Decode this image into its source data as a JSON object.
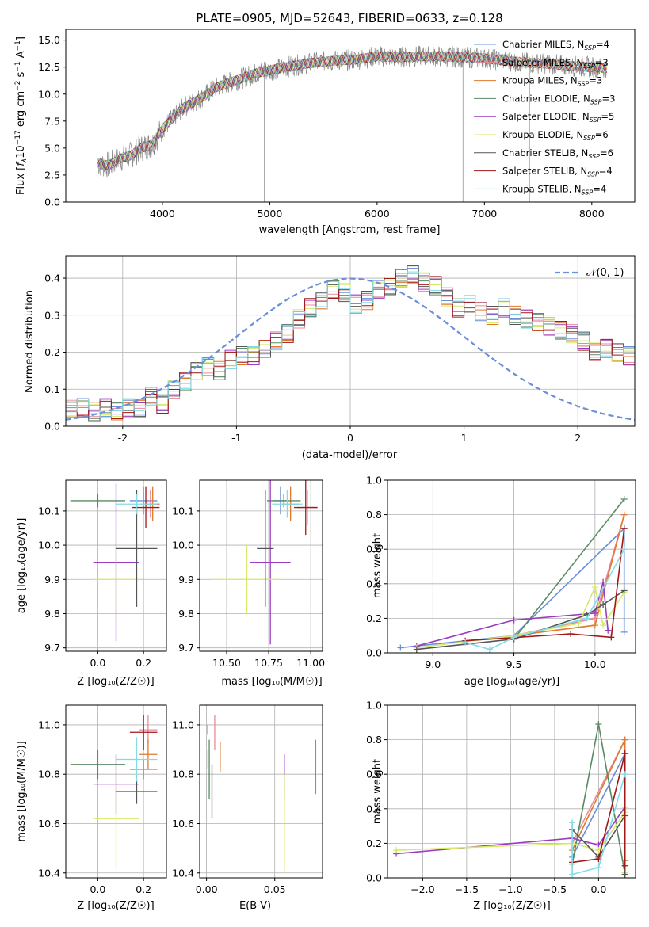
{
  "figure_title": "PLATE=0905, MJD=52643, FIBERID=0633, z=0.128",
  "legend": [
    {
      "label": "Chabrier MILES, N",
      "sub": "SSP",
      "tail": "=4",
      "color": "#6a8fd8"
    },
    {
      "label": "Salpeter MILES, N",
      "sub": "SSP",
      "tail": "=3",
      "color": "#e8899c"
    },
    {
      "label": "Kroupa MILES, N",
      "sub": "SSP",
      "tail": "=3",
      "color": "#e07a2e"
    },
    {
      "label": "Chabrier ELODIE, N",
      "sub": "SSP",
      "tail": "=3",
      "color": "#5a8a62"
    },
    {
      "label": "Salpeter ELODIE, N",
      "sub": "SSP",
      "tail": "=5",
      "color": "#9a3cc0"
    },
    {
      "label": "Kroupa ELODIE, N",
      "sub": "SSP",
      "tail": "=6",
      "color": "#d8e86a"
    },
    {
      "label": "Chabrier STELIB, N",
      "sub": "SSP",
      "tail": "=6",
      "color": "#555555"
    },
    {
      "label": "Salpeter STELIB, N",
      "sub": "SSP",
      "tail": "=4",
      "color": "#a01818"
    },
    {
      "label": "Kroupa STELIB, N",
      "sub": "SSP",
      "tail": "=4",
      "color": "#80dce8"
    }
  ],
  "panel1": {
    "xlabel": "wavelength [Angstrom, rest frame]",
    "ylabel_main": "Flux [",
    "ylabel_rest": "10",
    "ylabel_tail": " erg cm",
    "ylabel_a": " s",
    "ylabel_b": " A",
    "ylabel_close": "]"
  },
  "panel2": {
    "xlabel": "(data-model)/error",
    "ylabel": "Normed distribution",
    "legend_label": "𝒩(0, 1)"
  },
  "panel3": {
    "xlabel": "Z [log₁₀(Z/Z☉)]",
    "ylabel": "age  [log₁₀(age/yr)]"
  },
  "panel4": {
    "xlabel": "mass [log₁₀(M/M☉)]"
  },
  "panel5": {
    "xlabel": "age  [log₁₀(age/yr)]",
    "ylabel": "mass weight"
  },
  "panel6": {
    "xlabel": "Z [log₁₀(Z/Z☉)]",
    "ylabel": "mass [log₁₀(M/M☉)]"
  },
  "panel7": {
    "xlabel": "E(B-V)"
  },
  "panel8": {
    "xlabel": "Z [log₁₀(Z/Z☉)]",
    "ylabel": "mass weight"
  },
  "chart_data": [
    {
      "type": "line",
      "title": "PLATE=0905, MJD=52643, FIBERID=0633, z=0.128",
      "xlabel": "wavelength [Angstrom, rest frame]",
      "ylabel": "Flux [f_λ 10^-17 erg cm^-2 s^-1 A^-1]",
      "xlim": [
        3100,
        8400
      ],
      "ylim": [
        0,
        16
      ],
      "xticks": [
        4000,
        5000,
        6000,
        7000,
        8000
      ],
      "yticks": [
        0.0,
        2.5,
        5.0,
        7.5,
        10.0,
        12.5,
        15.0
      ],
      "grid": false,
      "legend_position": "right",
      "model_curve": {
        "x": [
          3400,
          3500,
          3600,
          3700,
          3800,
          3900,
          4000,
          4100,
          4200,
          4300,
          4400,
          4500,
          4600,
          4700,
          4800,
          4900,
          5000,
          5200,
          5400,
          5600,
          5800,
          6000,
          6200,
          6400,
          6600,
          6800,
          7000,
          7200,
          7400,
          7600,
          7800,
          8000,
          8150
        ],
        "y": [
          3.6,
          3.4,
          4.0,
          4.3,
          5.0,
          5.3,
          6.8,
          7.8,
          8.8,
          9.3,
          9.9,
          10.6,
          11.0,
          11.3,
          11.7,
          12.0,
          12.2,
          12.6,
          12.9,
          13.1,
          13.2,
          13.5,
          13.4,
          13.5,
          13.5,
          13.4,
          13.3,
          13.1,
          12.9,
          12.8,
          12.6,
          12.5,
          12.4
        ]
      }
    },
    {
      "type": "bar",
      "xlabel": "(data-model)/error",
      "ylabel": "Normed distribution",
      "xlim": [
        -2.5,
        2.5
      ],
      "ylim": [
        0,
        0.46
      ],
      "xticks": [
        -2,
        -1,
        0,
        1,
        2
      ],
      "yticks": [
        0.0,
        0.1,
        0.2,
        0.3,
        0.4
      ],
      "grid": true,
      "bin_edges_start": -2.5,
      "bin_width": 0.1,
      "histogram": [
        0.05,
        0.05,
        0.04,
        0.05,
        0.04,
        0.05,
        0.05,
        0.08,
        0.06,
        0.1,
        0.12,
        0.15,
        0.16,
        0.15,
        0.18,
        0.19,
        0.19,
        0.21,
        0.23,
        0.25,
        0.29,
        0.32,
        0.34,
        0.37,
        0.36,
        0.33,
        0.34,
        0.37,
        0.38,
        0.4,
        0.41,
        0.39,
        0.38,
        0.35,
        0.32,
        0.33,
        0.31,
        0.3,
        0.32,
        0.3,
        0.29,
        0.28,
        0.27,
        0.26,
        0.25,
        0.23,
        0.2,
        0.21,
        0.2,
        0.19,
        0.17,
        0.15,
        0.15,
        0.13,
        0.12,
        0.1,
        0.09,
        0.08,
        0.07,
        0.07,
        0.06,
        0.05,
        0.06,
        0.04,
        0.05,
        0.04,
        0.05,
        0.04
      ],
      "gaussian_label": "𝒩(0, 1)"
    },
    {
      "type": "scatter",
      "xlabel": "Z [log10(Z/Zsun)]",
      "ylabel": "age [log10(age/yr)]",
      "xlim": [
        -0.14,
        0.3
      ],
      "ylim": [
        9.69,
        10.19
      ],
      "xticks": [
        0.0,
        0.2
      ],
      "yticks": [
        9.7,
        9.8,
        9.9,
        10.0,
        10.1
      ],
      "grid": true,
      "points": [
        {
          "series": "Chabrier MILES",
          "x": 0.2,
          "y": 10.13,
          "xerr": 0.06,
          "yerr": 0.04
        },
        {
          "series": "Salpeter MILES",
          "x": 0.23,
          "y": 10.12,
          "xerr": 0.04,
          "yerr": 0.04
        },
        {
          "series": "Kroupa MILES",
          "x": 0.24,
          "y": 10.12,
          "xerr": 0.03,
          "yerr": 0.05
        },
        {
          "series": "Chabrier ELODIE",
          "x": 0.0,
          "y": 10.13,
          "xerr": 0.12,
          "yerr": 0.02
        },
        {
          "series": "Salpeter ELODIE",
          "x": 0.08,
          "y": 9.95,
          "xerr": 0.1,
          "yerr": 0.23
        },
        {
          "series": "Kroupa ELODIE",
          "x": 0.08,
          "y": 9.9,
          "xerr": 0.1,
          "yerr": 0.12
        },
        {
          "series": "Chabrier STELIB",
          "x": 0.17,
          "y": 9.99,
          "xerr": 0.09,
          "yerr": 0.17
        },
        {
          "series": "Salpeter STELIB",
          "x": 0.21,
          "y": 10.11,
          "xerr": 0.06,
          "yerr": 0.06
        },
        {
          "series": "Kroupa STELIB",
          "x": 0.17,
          "y": 10.12,
          "xerr": 0.09,
          "yerr": 0.03
        }
      ]
    },
    {
      "type": "scatter",
      "xlabel": "mass [log10(M/Msun)]",
      "xlim": [
        10.34,
        11.07
      ],
      "ylim": [
        9.69,
        10.19
      ],
      "xticks": [
        10.5,
        10.75,
        11.0
      ],
      "yticks": [
        9.7,
        9.8,
        9.9,
        10.0,
        10.1
      ],
      "grid": true,
      "points": [
        {
          "series": "Chabrier MILES",
          "x": 10.82,
          "y": 10.13,
          "xerr": 0.04,
          "yerr": 0.04
        },
        {
          "series": "Salpeter MILES",
          "x": 10.98,
          "y": 10.11,
          "xerr": 0.06,
          "yerr": 0.05
        },
        {
          "series": "Kroupa MILES",
          "x": 10.88,
          "y": 10.12,
          "xerr": 0.05,
          "yerr": 0.05
        },
        {
          "series": "Chabrier ELODIE",
          "x": 10.84,
          "y": 10.13,
          "xerr": 0.1,
          "yerr": 0.02
        },
        {
          "series": "Salpeter ELODIE",
          "x": 10.76,
          "y": 9.95,
          "xerr": 0.12,
          "yerr": 0.24
        },
        {
          "series": "Kroupa ELODIE",
          "x": 10.62,
          "y": 9.9,
          "xerr": 0.2,
          "yerr": 0.1
        },
        {
          "series": "Chabrier STELIB",
          "x": 10.73,
          "y": 9.99,
          "xerr": 0.05,
          "yerr": 0.17
        },
        {
          "series": "Salpeter STELIB",
          "x": 10.97,
          "y": 10.11,
          "xerr": 0.07,
          "yerr": 0.08
        },
        {
          "series": "Kroupa STELIB",
          "x": 10.86,
          "y": 10.12,
          "xerr": 0.09,
          "yerr": 0.04
        }
      ]
    },
    {
      "type": "line",
      "xlabel": "age [log10(age/yr)]",
      "ylabel": "mass weight",
      "xlim": [
        8.72,
        10.25
      ],
      "ylim": [
        0,
        1
      ],
      "xticks": [
        9.0,
        9.5,
        10.0
      ],
      "yticks": [
        0.0,
        0.2,
        0.4,
        0.6,
        0.8,
        1.0
      ],
      "grid": true,
      "series": [
        {
          "name": "Chabrier MILES",
          "x": [
            8.8,
            9.5,
            10.18,
            10.18
          ],
          "y": [
            0.03,
            0.1,
            0.72,
            0.12
          ]
        },
        {
          "name": "Salpeter MILES",
          "x": [
            9.5,
            10.0,
            10.18
          ],
          "y": [
            0.1,
            0.2,
            0.8
          ]
        },
        {
          "name": "Kroupa MILES",
          "x": [
            9.5,
            10.0,
            10.18
          ],
          "y": [
            0.1,
            0.16,
            0.8
          ]
        },
        {
          "name": "Chabrier ELODIE",
          "x": [
            9.5,
            10.18
          ],
          "y": [
            0.08,
            0.89
          ]
        },
        {
          "name": "Salpeter ELODIE",
          "x": [
            8.9,
            9.5,
            10.0,
            10.05,
            10.08
          ],
          "y": [
            0.04,
            0.19,
            0.23,
            0.41,
            0.13
          ]
        },
        {
          "name": "Kroupa ELODIE",
          "x": [
            8.9,
            9.5,
            9.9,
            10.0,
            10.05,
            10.18
          ],
          "y": [
            0.03,
            0.1,
            0.17,
            0.38,
            0.16,
            0.35
          ]
        },
        {
          "name": "Chabrier STELIB",
          "x": [
            8.9,
            9.5,
            9.95,
            10.05,
            10.18
          ],
          "y": [
            0.02,
            0.08,
            0.22,
            0.28,
            0.36
          ]
        },
        {
          "name": "Salpeter STELIB",
          "x": [
            9.2,
            9.85,
            10.1,
            10.18
          ],
          "y": [
            0.07,
            0.11,
            0.09,
            0.72
          ]
        },
        {
          "name": "Kroupa STELIB",
          "x": [
            9.2,
            9.35,
            9.5,
            9.95,
            10.18
          ],
          "y": [
            0.06,
            0.02,
            0.09,
            0.2,
            0.6
          ]
        }
      ]
    },
    {
      "type": "scatter",
      "xlabel": "Z [log10(Z/Zsun)]",
      "ylabel": "mass [log10(M/Msun)]",
      "xlim": [
        -0.14,
        0.3
      ],
      "ylim": [
        10.38,
        11.08
      ],
      "xticks": [
        0.0,
        0.2
      ],
      "yticks": [
        10.4,
        10.6,
        10.8,
        11.0
      ],
      "grid": true,
      "points": [
        {
          "series": "Chabrier MILES",
          "x": 0.2,
          "y": 10.82,
          "xerr": 0.06,
          "yerr": 0.04
        },
        {
          "series": "Salpeter MILES",
          "x": 0.22,
          "y": 10.98,
          "xerr": 0.04,
          "yerr": 0.06
        },
        {
          "series": "Kroupa MILES",
          "x": 0.22,
          "y": 10.88,
          "xerr": 0.04,
          "yerr": 0.06
        },
        {
          "series": "Chabrier ELODIE",
          "x": 0.0,
          "y": 10.84,
          "xerr": 0.12,
          "yerr": 0.06
        },
        {
          "series": "Salpeter ELODIE",
          "x": 0.08,
          "y": 10.76,
          "xerr": 0.1,
          "yerr": 0.12
        },
        {
          "series": "Kroupa ELODIE",
          "x": 0.08,
          "y": 10.62,
          "xerr": 0.1,
          "yerr": 0.2
        },
        {
          "series": "Chabrier STELIB",
          "x": 0.17,
          "y": 10.73,
          "xerr": 0.09,
          "yerr": 0.05
        },
        {
          "series": "Salpeter STELIB",
          "x": 0.2,
          "y": 10.97,
          "xerr": 0.06,
          "yerr": 0.07
        },
        {
          "series": "Kroupa STELIB",
          "x": 0.17,
          "y": 10.86,
          "xerr": 0.09,
          "yerr": 0.09
        }
      ]
    },
    {
      "type": "scatter",
      "xlabel": "E(B-V)",
      "xlim": [
        -0.005,
        0.085
      ],
      "ylim": [
        10.38,
        11.08
      ],
      "xticks": [
        0.0,
        0.05
      ],
      "yticks": [
        10.4,
        10.6,
        10.8,
        11.0
      ],
      "grid": true,
      "points": [
        {
          "series": "Chabrier MILES",
          "x": 0.08,
          "y": 10.83,
          "yerr": 0.11
        },
        {
          "series": "Salpeter MILES",
          "x": 0.006,
          "y": 10.97,
          "yerr": 0.07
        },
        {
          "series": "Kroupa MILES",
          "x": 0.01,
          "y": 10.87,
          "yerr": 0.06
        },
        {
          "series": "Chabrier ELODIE",
          "x": 0.002,
          "y": 10.82,
          "yerr": 0.12
        },
        {
          "series": "Salpeter ELODIE",
          "x": 0.057,
          "y": 10.79,
          "yerr": 0.09
        },
        {
          "series": "Kroupa ELODIE",
          "x": 0.057,
          "y": 10.6,
          "yerr": 0.2
        },
        {
          "series": "Chabrier STELIB",
          "x": 0.004,
          "y": 10.73,
          "yerr": 0.11
        },
        {
          "series": "Salpeter STELIB",
          "x": 0.001,
          "y": 10.98,
          "yerr": 0.02
        },
        {
          "series": "Kroupa STELIB",
          "x": 0.001,
          "y": 10.86,
          "yerr": 0.04
        }
      ]
    },
    {
      "type": "line",
      "xlabel": "Z [log10(Z/Zsun)]",
      "ylabel": "mass weight",
      "xlim": [
        -2.4,
        0.42
      ],
      "ylim": [
        0,
        1
      ],
      "xticks": [
        -2.0,
        -1.5,
        -1.0,
        -0.5,
        0.0
      ],
      "yticks": [
        0.0,
        0.2,
        0.4,
        0.6,
        0.8,
        1.0
      ],
      "grid": true,
      "series": [
        {
          "name": "Chabrier MILES",
          "x": [
            -0.3,
            0.3,
            0.3
          ],
          "y": [
            0.12,
            0.72,
            0.03
          ]
        },
        {
          "name": "Salpeter MILES",
          "x": [
            -0.3,
            0.3
          ],
          "y": [
            0.2,
            0.8
          ]
        },
        {
          "name": "Kroupa MILES",
          "x": [
            -0.3,
            0.3,
            0.3
          ],
          "y": [
            0.16,
            0.8,
            0.1
          ]
        },
        {
          "name": "Chabrier ELODIE",
          "x": [
            -0.3,
            0.0,
            0.3
          ],
          "y": [
            0.08,
            0.89,
            0.02
          ]
        },
        {
          "name": "Salpeter ELODIE",
          "x": [
            -2.3,
            -0.3,
            0.0,
            0.3
          ],
          "y": [
            0.14,
            0.23,
            0.19,
            0.41
          ]
        },
        {
          "name": "Kroupa ELODIE",
          "x": [
            -2.3,
            -0.3,
            0.0,
            0.3,
            0.3
          ],
          "y": [
            0.16,
            0.2,
            0.16,
            0.38,
            0.03
          ]
        },
        {
          "name": "Chabrier STELIB",
          "x": [
            -0.3,
            0.0,
            0.3,
            0.3
          ],
          "y": [
            0.28,
            0.12,
            0.36,
            0.02
          ]
        },
        {
          "name": "Salpeter STELIB",
          "x": [
            -0.3,
            0.0,
            0.3,
            0.3
          ],
          "y": [
            0.09,
            0.11,
            0.72,
            0.07
          ]
        },
        {
          "name": "Kroupa STELIB",
          "x": [
            -0.3,
            -0.3,
            0.0,
            0.3
          ],
          "y": [
            0.32,
            0.02,
            0.06,
            0.6
          ]
        }
      ]
    }
  ]
}
